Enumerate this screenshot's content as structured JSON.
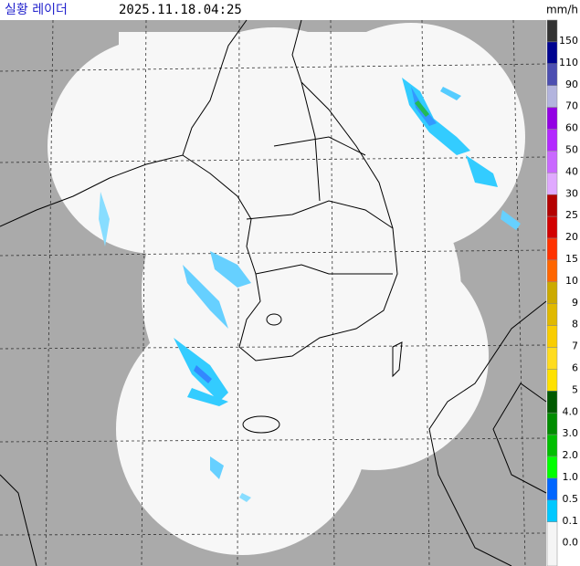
{
  "header": {
    "title": "실황 레이더",
    "timestamp": "2025.11.18.04:25",
    "unit": "mm/h"
  },
  "legend": {
    "items": [
      {
        "label": "150",
        "color": "#333333"
      },
      {
        "label": "110",
        "color": "#000390"
      },
      {
        "label": "90",
        "color": "#4c4eb1"
      },
      {
        "label": "70",
        "color": "#b3b4de"
      },
      {
        "label": "60",
        "color": "#9300e4"
      },
      {
        "label": "50",
        "color": "#b329ff"
      },
      {
        "label": "40",
        "color": "#c969ff"
      },
      {
        "label": "30",
        "color": "#e0a9ff"
      },
      {
        "label": "25",
        "color": "#b40000"
      },
      {
        "label": "20",
        "color": "#d20000"
      },
      {
        "label": "15",
        "color": "#ff3200"
      },
      {
        "label": "10",
        "color": "#ff6600"
      },
      {
        "label": "9",
        "color": "#ccaa00"
      },
      {
        "label": "8",
        "color": "#e0b900"
      },
      {
        "label": "7",
        "color": "#f9cd00"
      },
      {
        "label": "6",
        "color": "#ffdc1f"
      },
      {
        "label": "5",
        "color": "#ffe100"
      },
      {
        "label": "4.0",
        "color": "#005a00"
      },
      {
        "label": "3.0",
        "color": "#008c00"
      },
      {
        "label": "2.0",
        "color": "#00be00"
      },
      {
        "label": "1.0",
        "color": "#00ff00"
      },
      {
        "label": "0.5",
        "color": "#0066ff"
      },
      {
        "label": "0.1",
        "color": "#00c8ff"
      },
      {
        "label": "0.0",
        "color": "#f5f5f5"
      }
    ]
  }
}
